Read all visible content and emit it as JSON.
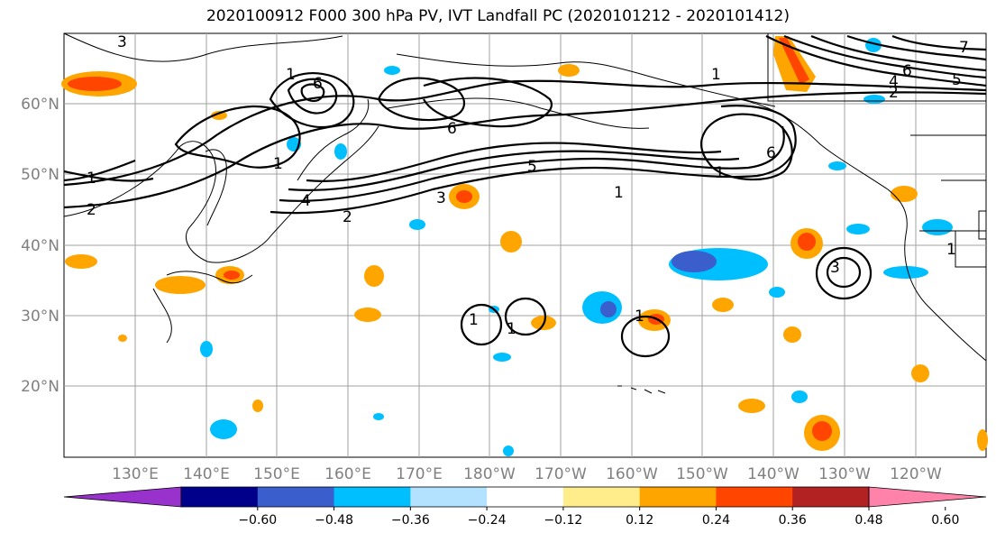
{
  "title": "2020100912 F000 300 hPa PV, IVT Landfall PC (2020101212 - 2020101412)",
  "map": {
    "lat_labels": [
      "60°N",
      "50°N",
      "40°N",
      "30°N",
      "20°N"
    ],
    "lon_labels": [
      "130°E",
      "140°E",
      "150°E",
      "160°E",
      "170°E",
      "180°W",
      "170°W",
      "160°W",
      "150°W",
      "140°W",
      "130°W",
      "120°W"
    ],
    "contour_labels": [
      {
        "text": "3"
      },
      {
        "text": "6"
      },
      {
        "text": "1"
      },
      {
        "text": "1"
      },
      {
        "text": "2"
      },
      {
        "text": "4"
      },
      {
        "text": "2"
      },
      {
        "text": "5"
      },
      {
        "text": "3"
      },
      {
        "text": "1"
      },
      {
        "text": "6"
      },
      {
        "text": "1"
      },
      {
        "text": "6"
      },
      {
        "text": "5"
      },
      {
        "text": "4"
      },
      {
        "text": "2"
      },
      {
        "text": "1"
      },
      {
        "text": "1"
      },
      {
        "text": "3"
      },
      {
        "text": "1"
      },
      {
        "text": "1"
      },
      {
        "text": "1"
      },
      {
        "text": "1"
      },
      {
        "text": "6"
      },
      {
        "text": "7"
      }
    ]
  },
  "colorbar": {
    "colors": [
      "#9932cc",
      "#00008b",
      "#3a5fcd",
      "#00bfff",
      "#b2e2ff",
      "#ffffff",
      "#ffec8b",
      "#ffa500",
      "#ff4500",
      "#b22222",
      "#ff82ab"
    ],
    "tick_labels": [
      "−0.60",
      "−0.48",
      "−0.36",
      "−0.24",
      "−0.12",
      "0.12",
      "0.24",
      "0.36",
      "0.48",
      "0.60"
    ]
  }
}
